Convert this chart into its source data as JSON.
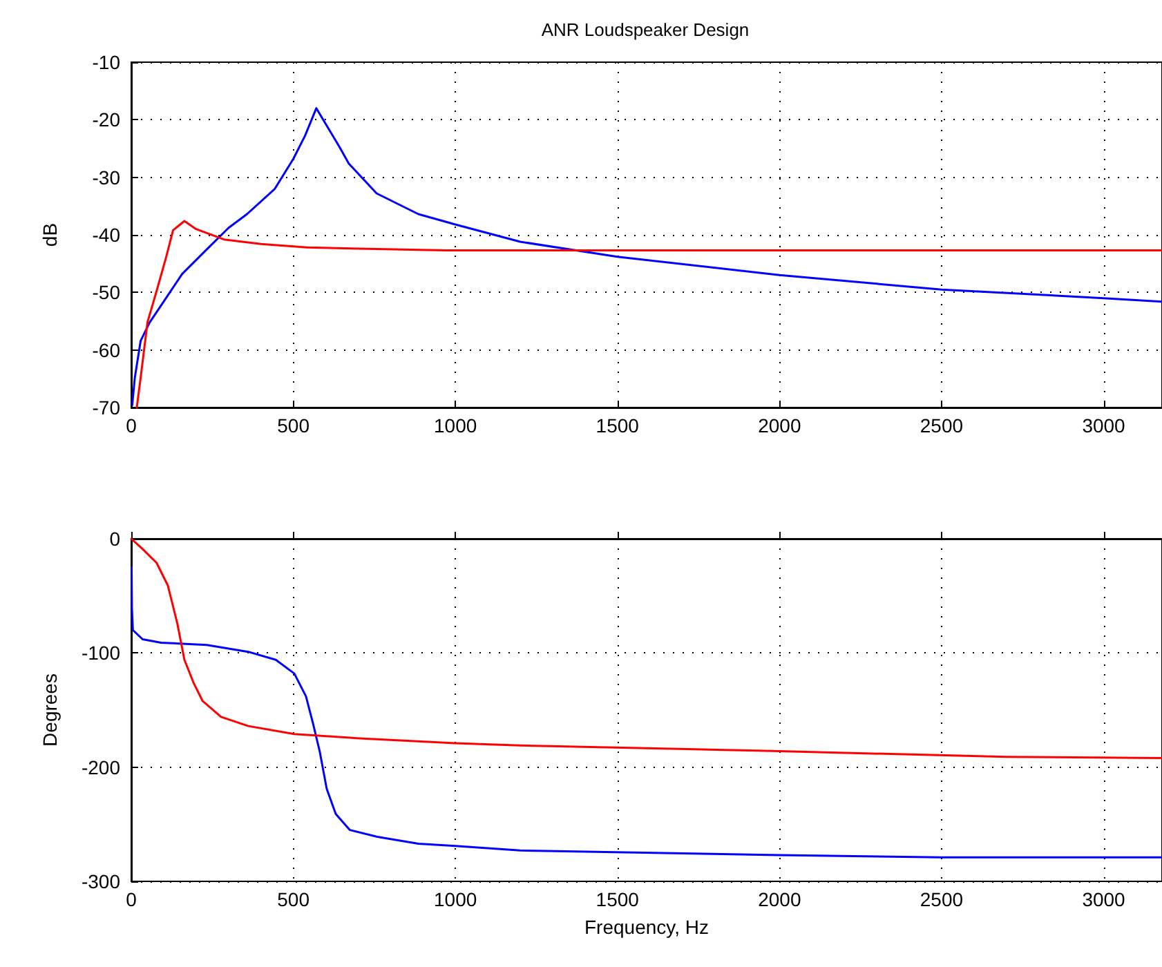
{
  "chart_data": [
    {
      "type": "line",
      "title": "ANR Loudspeaker Design",
      "ylabel": "dB",
      "xlim": [
        0,
        3180
      ],
      "xticks": [
        0,
        500,
        1000,
        1500,
        2000,
        2500,
        3000
      ],
      "ylim": [
        -70,
        -10
      ],
      "yticks": [
        -70,
        -60,
        -50,
        -40,
        -30,
        -20,
        -10
      ],
      "grid": true,
      "line_style": "solid",
      "marker": "none",
      "series": [
        {
          "color": "#0000ff",
          "x": [
            3,
            11,
            29,
            57,
            100,
            157,
            228,
            300,
            357,
            443,
            500,
            536,
            571,
            643,
            671,
            757,
            886,
            1000,
            1200,
            1500,
            2000,
            2500,
            3000,
            3180
          ],
          "values": [
            -69.6,
            -64.8,
            -58.4,
            -55.2,
            -51.6,
            -46.8,
            -42.8,
            -38.8,
            -36.4,
            -32,
            -26.8,
            -22.8,
            -18,
            -24.8,
            -27.6,
            -32.8,
            -36.4,
            -38.2,
            -41.2,
            -43.8,
            -47,
            -49.5,
            -51,
            -51.6
          ]
        },
        {
          "color": "#ff0000",
          "x": [
            17,
            29,
            50,
            79,
            107,
            129,
            164,
            200,
            286,
            400,
            543,
            971,
            3180
          ],
          "values": [
            -70,
            -64.8,
            -55.2,
            -49.6,
            -44,
            -39.2,
            -37.6,
            -39,
            -40.8,
            -41.6,
            -42.2,
            -42.7,
            -42.7
          ]
        }
      ]
    },
    {
      "type": "line",
      "xlabel": "Frequency, Hz",
      "ylabel": "Degrees",
      "xlim": [
        0,
        3180
      ],
      "xticks": [
        0,
        500,
        1000,
        1500,
        2000,
        2500,
        3000
      ],
      "ylim": [
        -300,
        0
      ],
      "yticks": [
        -300,
        -200,
        -100,
        0
      ],
      "grid": true,
      "line_style": "solid",
      "marker": "none",
      "series": [
        {
          "color": "#0000ff",
          "x": [
            1,
            2,
            5,
            35,
            92,
            233,
            361,
            446,
            503,
            539,
            561,
            582,
            603,
            631,
            674,
            759,
            886,
            1000,
            1200,
            2000,
            2500,
            3180
          ],
          "values": [
            -25,
            -61,
            -80,
            -88,
            -91,
            -93,
            -99,
            -106,
            -118,
            -138,
            -162,
            -187,
            -219,
            -241,
            -255,
            -261,
            -267,
            -269,
            -273,
            -277,
            -279,
            -279
          ]
        },
        {
          "color": "#ff0000",
          "x": [
            0,
            35,
            78,
            113,
            142,
            164,
            192,
            220,
            277,
            361,
            503,
            715,
            1000,
            1200,
            2000,
            2700,
            3180
          ],
          "values": [
            0,
            -9,
            -21,
            -41,
            -74,
            -106,
            -126,
            -142,
            -156,
            -164,
            -171,
            -175,
            -179,
            -181,
            -186,
            -191,
            -192
          ]
        }
      ]
    }
  ]
}
